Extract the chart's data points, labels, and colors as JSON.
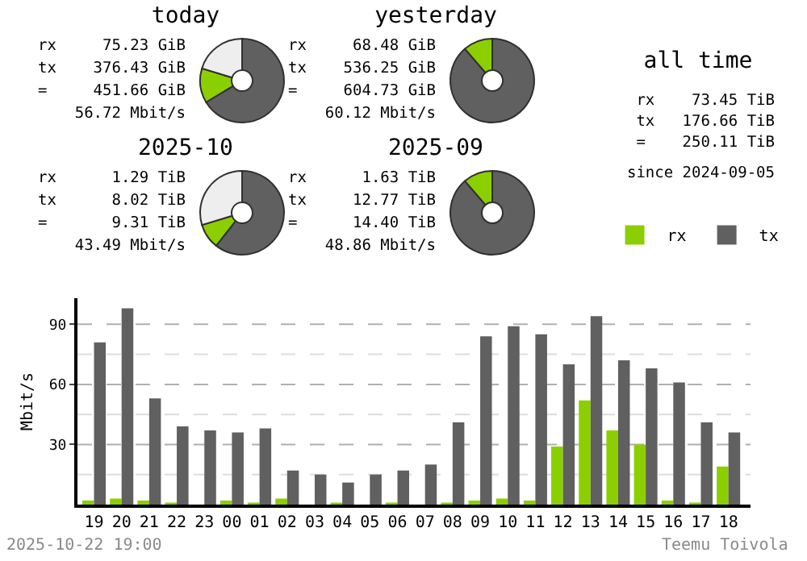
{
  "chart_data": [
    {
      "type": "donut",
      "title": "today",
      "categories": [
        null,
        null,
        null
      ],
      "values": [
        66.4,
        13.3,
        20.3
      ],
      "colors": [
        "#606060",
        "#8ccf00",
        "#eeeeee"
      ],
      "annotations": [
        "rx     75.23 GiB",
        "tx    376.43 GiB",
        "=     451.66 GiB",
        "56.72 Mbit/s"
      ]
    },
    {
      "type": "donut",
      "title": "yesterday",
      "categories": [
        null,
        null
      ],
      "values": [
        88.7,
        11.3
      ],
      "colors": [
        "#606060",
        "#8ccf00"
      ],
      "annotations": [
        "rx     68.48 GiB",
        "tx    536.25 GiB",
        "=     604.73 GiB",
        "60.12 Mbit/s"
      ]
    },
    {
      "type": "other",
      "title": "all time",
      "annotations": [
        "rx    73.45 TiB",
        "tx   176.66 TiB",
        "=    250.11 TiB",
        "since 2024-09-05"
      ]
    },
    {
      "type": "donut",
      "title": "2025-10",
      "categories": [
        null,
        null,
        null
      ],
      "values": [
        60.6,
        9.7,
        29.7
      ],
      "colors": [
        "#606060",
        "#8ccf00",
        "#eeeeee"
      ],
      "annotations": [
        "rx      1.29 TiB",
        "tx      8.02 TiB",
        "=       9.31 TiB",
        "43.49 Mbit/s"
      ]
    },
    {
      "type": "donut",
      "title": "2025-09",
      "categories": [
        null,
        null
      ],
      "values": [
        88.7,
        11.3
      ],
      "colors": [
        "#606060",
        "#8ccf00"
      ],
      "annotations": [
        "rx      1.63 TiB",
        "tx     12.77 TiB",
        "=      14.40 TiB",
        "48.86 Mbit/s"
      ]
    },
    {
      "type": "bar",
      "ylabel": "Mbit/s",
      "categories": [
        "19",
        "20",
        "21",
        "22",
        "23",
        "00",
        "01",
        "02",
        "03",
        "04",
        "05",
        "06",
        "07",
        "08",
        "09",
        "10",
        "11",
        "12",
        "13",
        "14",
        "15",
        "16",
        "17",
        "18"
      ],
      "series": [
        {
          "name": "rx",
          "color": "#8ccf00",
          "values": [
            2,
            3,
            2,
            1,
            0,
            2,
            1,
            3,
            0,
            1,
            0,
            1,
            0,
            1,
            2,
            3,
            2,
            29,
            52,
            37,
            30,
            2,
            1,
            19
          ]
        },
        {
          "name": "tx",
          "color": "#606060",
          "values": [
            81,
            98,
            53,
            39,
            37,
            36,
            38,
            17,
            15,
            11,
            15,
            17,
            20,
            41,
            84,
            89,
            85,
            70,
            94,
            72,
            68,
            61,
            41,
            36
          ]
        }
      ],
      "ylim": [
        0,
        103
      ],
      "yticks": [
        {
          "value": 15,
          "label": null
        },
        30,
        {
          "value": 45,
          "label": null
        },
        60,
        {
          "value": 75,
          "label": null
        },
        90
      ],
      "grid": "y",
      "legend": "top right",
      "annotations": [
        "2025-10-22 19:00",
        "Teemu Toivola"
      ]
    }
  ]
}
